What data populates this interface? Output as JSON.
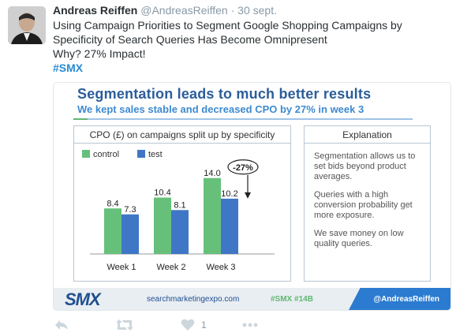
{
  "tweet": {
    "author_name": "Andreas Reiffen",
    "author_handle": "@AndreasReiffen",
    "separator": "·",
    "date": "30 sept.",
    "text_lines": [
      "Using Campaign Priorities to Segment Google Shopping Campaigns by",
      "Specificity of Search Queries Has Become Omnipresent",
      "Why? 27% Impact!"
    ],
    "hashtag": "#SMX",
    "like_count": "1"
  },
  "slide": {
    "title": "Segmentation leads to much better results",
    "subtitle": "We kept sales stable and decreased CPO by 27% in week 3",
    "explanation_title": "Explanation",
    "explanation_paragraphs": [
      "Segmentation allows us to set bids beyond product averages.",
      "Queries with a high conversion probability get more exposure.",
      "We save money on low quality queries."
    ],
    "footer": {
      "logo": "SMX",
      "url": "searchmarketingexpo.com",
      "tag": "#SMX #14B",
      "handle": "@AndreasReiffen"
    }
  },
  "chart_data": {
    "type": "bar",
    "title": "CPO (£) on campaigns split up by specificity",
    "categories": [
      "Week 1",
      "Week 2",
      "Week 3"
    ],
    "series": [
      {
        "name": "control",
        "values": [
          8.4,
          10.4,
          14.0
        ],
        "labels": [
          "8.4",
          "10.4",
          "14.0"
        ],
        "color": "#66c07a"
      },
      {
        "name": "test",
        "values": [
          7.3,
          8.1,
          10.2
        ],
        "labels": [
          "7.3",
          "8.1",
          "10.2"
        ],
        "color": "#3f77c6"
      }
    ],
    "ylim": [
      0,
      16
    ],
    "grid": false,
    "legend": "top-left",
    "annotation": "-27%"
  },
  "colors": {
    "link": "#2a8cd2",
    "slide_title": "#2b5d9a",
    "slide_subtitle": "#3d8ad0",
    "icon": "#ccd6dd"
  },
  "icons": {
    "reply": "reply-icon",
    "retweet": "retweet-icon",
    "like": "heart-icon",
    "more": "more-icon"
  }
}
